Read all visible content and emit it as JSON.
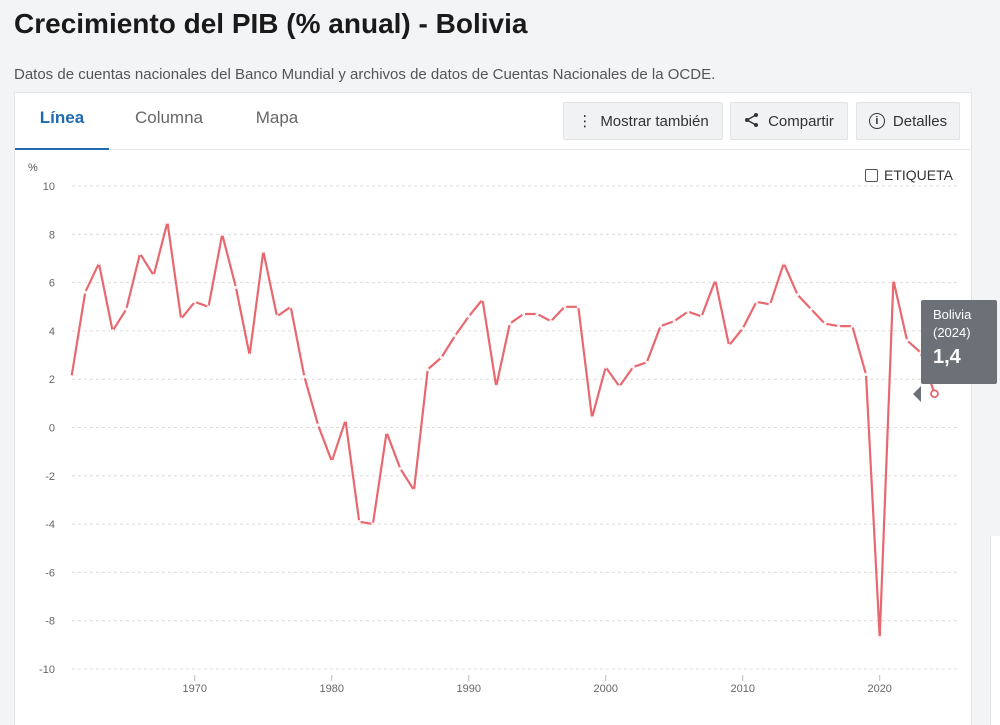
{
  "header": {
    "title": "Crecimiento del PIB (% anual) - Bolivia",
    "subtitle": "Datos de cuentas nacionales del Banco Mundial y archivos de datos de Cuentas Nacionales de la OCDE."
  },
  "tabs": [
    {
      "label": "Línea",
      "active": true
    },
    {
      "label": "Columna",
      "active": false
    },
    {
      "label": "Mapa",
      "active": false
    }
  ],
  "toolbar": {
    "show_also": "Mostrar también",
    "share": "Compartir",
    "details": "Detalles"
  },
  "label_toggle": {
    "label": "ETIQUETA",
    "checked": false
  },
  "tooltip": {
    "country": "Bolivia",
    "year": "(2024)",
    "value": "1,4"
  },
  "colors": {
    "line": "#e8686f",
    "accent": "#1f6bb1",
    "tooltip_bg": "#6b7176"
  },
  "chart_data": {
    "type": "line",
    "ylabel": "%",
    "ylim": [
      -10,
      10
    ],
    "yticks": [
      10,
      8,
      6,
      4,
      2,
      0,
      -2,
      -4,
      -6,
      -8,
      -10
    ],
    "xlim": [
      1960,
      2024
    ],
    "xticks": [
      1970,
      1980,
      1990,
      2000,
      2010,
      2020
    ],
    "grid": true,
    "series": [
      {
        "name": "Bolivia",
        "x": [
          1961,
          1962,
          1963,
          1964,
          1965,
          1966,
          1967,
          1968,
          1969,
          1970,
          1971,
          1972,
          1973,
          1974,
          1975,
          1976,
          1977,
          1978,
          1979,
          1980,
          1981,
          1982,
          1983,
          1984,
          1985,
          1986,
          1987,
          1988,
          1989,
          1990,
          1991,
          1992,
          1993,
          1994,
          1995,
          1996,
          1997,
          1998,
          1999,
          2000,
          2001,
          2002,
          2003,
          2004,
          2005,
          2006,
          2007,
          2008,
          2009,
          2010,
          2011,
          2012,
          2013,
          2014,
          2015,
          2016,
          2017,
          2018,
          2019,
          2020,
          2021,
          2022,
          2023,
          2024
        ],
        "values": [
          2.1,
          5.6,
          6.8,
          4.0,
          4.9,
          7.2,
          6.3,
          8.5,
          4.5,
          5.2,
          5.0,
          8.0,
          5.8,
          3.0,
          7.3,
          4.6,
          5.0,
          2.1,
          0.1,
          -1.4,
          0.3,
          -3.9,
          -4.0,
          -0.2,
          -1.7,
          -2.6,
          2.4,
          2.9,
          3.8,
          4.6,
          5.3,
          1.7,
          4.3,
          4.7,
          4.7,
          4.4,
          5.0,
          5.0,
          0.4,
          2.5,
          1.7,
          2.5,
          2.7,
          4.2,
          4.4,
          4.8,
          4.6,
          6.1,
          3.4,
          4.1,
          5.2,
          5.1,
          6.8,
          5.5,
          4.9,
          4.3,
          4.2,
          4.2,
          2.2,
          -8.7,
          6.1,
          3.6,
          3.1,
          1.4
        ]
      }
    ]
  }
}
